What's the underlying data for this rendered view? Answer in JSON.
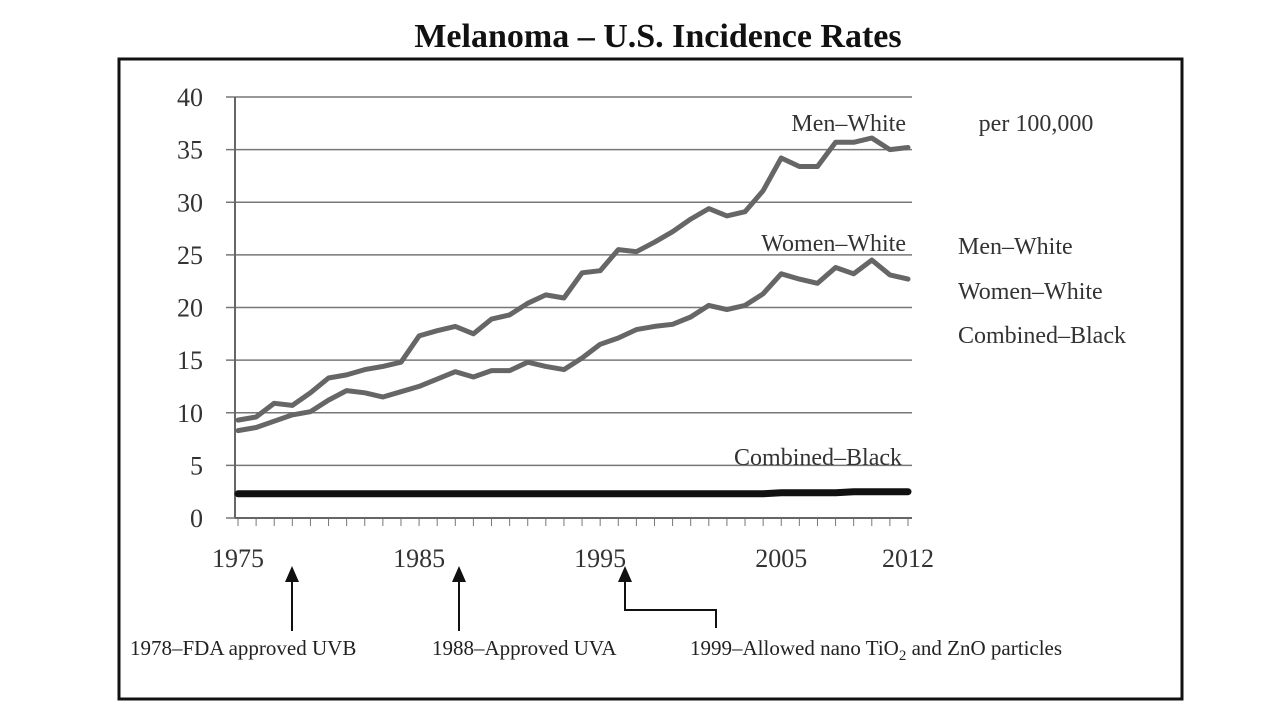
{
  "chart_data": {
    "type": "line",
    "title": "Melanoma – U.S. Incidence Rates",
    "unit_label": "per 100,000",
    "ylim": [
      0,
      40
    ],
    "xlim": [
      1975,
      2012
    ],
    "y_ticks": [
      "0",
      "5",
      "10",
      "15",
      "20",
      "25",
      "30",
      "35",
      "40"
    ],
    "x_ticks": [
      "1975",
      "1985",
      "1995",
      "2005",
      "2012"
    ],
    "grid": true,
    "x": [
      1975,
      1976,
      1977,
      1978,
      1979,
      1980,
      1981,
      1982,
      1983,
      1984,
      1985,
      1986,
      1987,
      1988,
      1989,
      1990,
      1991,
      1992,
      1993,
      1994,
      1995,
      1996,
      1997,
      1998,
      1999,
      2000,
      2001,
      2002,
      2003,
      2004,
      2005,
      2006,
      2007,
      2008,
      2009,
      2010,
      2011,
      2012
    ],
    "series": [
      {
        "name": "Men–White",
        "color": "#666666",
        "values": [
          9.3,
          9.6,
          10.9,
          10.7,
          11.9,
          13.3,
          13.6,
          14.1,
          14.4,
          14.8,
          17.3,
          17.8,
          18.2,
          17.5,
          18.9,
          19.3,
          20.4,
          21.2,
          20.9,
          23.3,
          23.5,
          25.5,
          25.3,
          26.2,
          27.2,
          28.4,
          29.4,
          28.7,
          29.1,
          31.1,
          34.2,
          33.4,
          33.4,
          35.7,
          35.7,
          36.1,
          35.0,
          35.2
        ]
      },
      {
        "name": "Women–White",
        "color": "#666666",
        "values": [
          8.3,
          8.6,
          9.2,
          9.8,
          10.1,
          11.2,
          12.1,
          11.9,
          11.5,
          12.0,
          12.5,
          13.2,
          13.9,
          13.4,
          14.0,
          14.0,
          14.8,
          14.4,
          14.1,
          15.2,
          16.5,
          17.1,
          17.9,
          18.2,
          18.4,
          19.1,
          20.2,
          19.8,
          20.2,
          21.3,
          23.2,
          22.7,
          22.3,
          23.8,
          23.2,
          24.5,
          23.1,
          22.7
        ]
      },
      {
        "name": "Combined–Black",
        "color": "#111111",
        "values": [
          2.3,
          2.3,
          2.3,
          2.3,
          2.3,
          2.3,
          2.3,
          2.3,
          2.3,
          2.3,
          2.3,
          2.3,
          2.3,
          2.3,
          2.3,
          2.3,
          2.3,
          2.3,
          2.3,
          2.3,
          2.3,
          2.3,
          2.3,
          2.3,
          2.3,
          2.3,
          2.3,
          2.3,
          2.3,
          2.3,
          2.4,
          2.4,
          2.4,
          2.4,
          2.5,
          2.5,
          2.5,
          2.5
        ]
      }
    ],
    "line_labels": [
      "Men–White",
      "Women–White",
      "Combined–Black"
    ],
    "legend": [
      "Men–White",
      "Women–White",
      "Combined–Black"
    ],
    "annotations": [
      {
        "year": 1978,
        "text": "1978–FDA approved UVB"
      },
      {
        "year": 1988,
        "text": "1988–Approved UVA"
      },
      {
        "year": 1999,
        "text_before_sub": "1999–Allowed nano TiO",
        "sub": "2",
        "text_after_sub": " and ZnO particles"
      }
    ]
  }
}
